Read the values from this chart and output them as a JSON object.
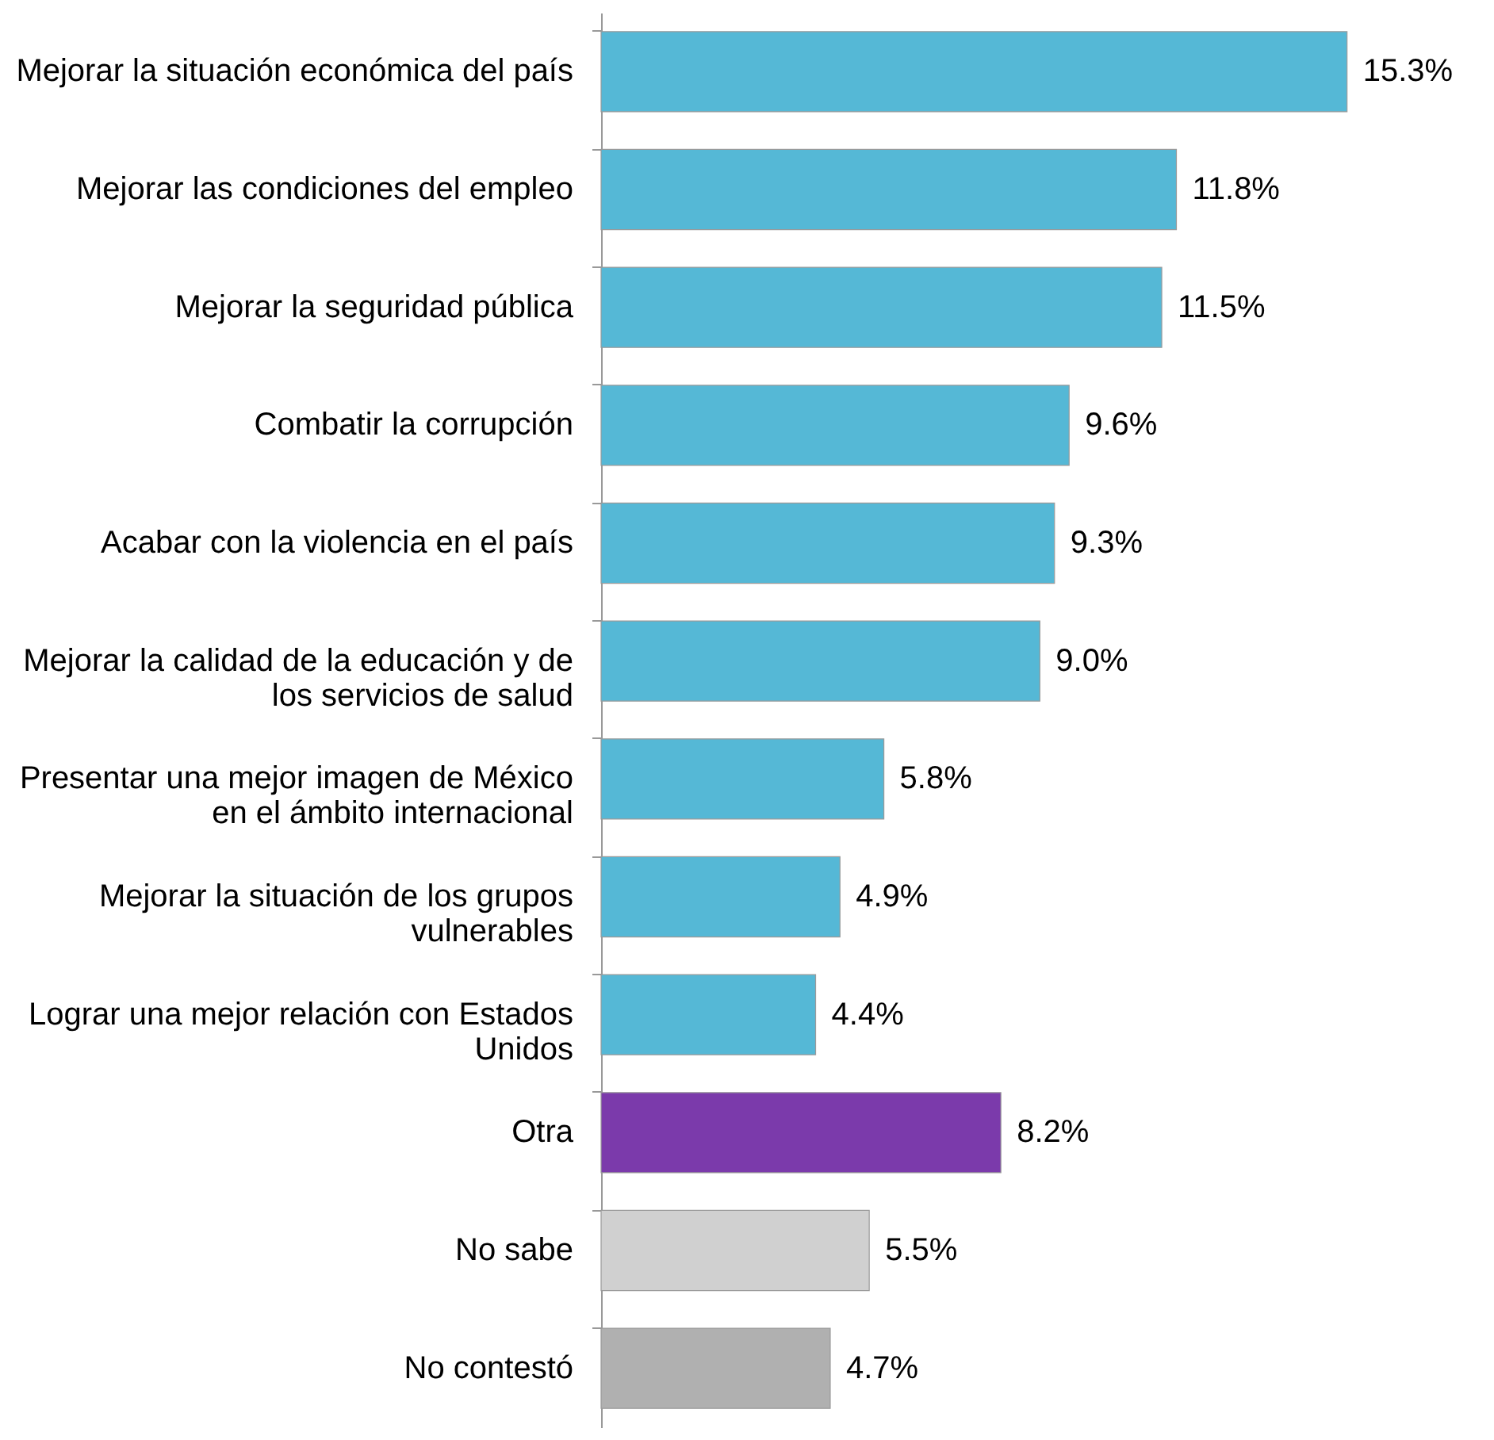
{
  "chart_data": {
    "type": "bar",
    "orientation": "horizontal",
    "value_labels": [
      "15.3%",
      "11.8%",
      "11.5%",
      "9.6%",
      "9.3%",
      "9.0%",
      "5.8%",
      "4.9%",
      "4.4%",
      "8.2%",
      "5.5%",
      "4.7%"
    ],
    "categories": [
      "Mejorar la situación económica del país",
      "Mejorar las condiciones del empleo",
      "Mejorar la seguridad pública",
      "Combatir la corrupción",
      "Acabar con la violencia en el país",
      "Mejorar la calidad de la educación y  de\nlos servicios de salud",
      "Presentar una mejor imagen de México\nen el ámbito internacional",
      "Mejorar la situación de los grupos\nvulnerables",
      "Lograr una mejor relación con Estados\nUnidos",
      "Otra",
      "No sabe",
      "No contestó"
    ],
    "values": [
      15.3,
      11.8,
      11.5,
      9.6,
      9.3,
      9.0,
      5.8,
      4.9,
      4.4,
      8.2,
      5.5,
      4.7
    ],
    "colors": [
      "#55b8d6",
      "#55b8d6",
      "#55b8d6",
      "#55b8d6",
      "#55b8d6",
      "#55b8d6",
      "#55b8d6",
      "#55b8d6",
      "#55b8d6",
      "#7b3aab",
      "#d0d0d0",
      "#b0b0b0"
    ],
    "grid": false,
    "legend": false
  }
}
